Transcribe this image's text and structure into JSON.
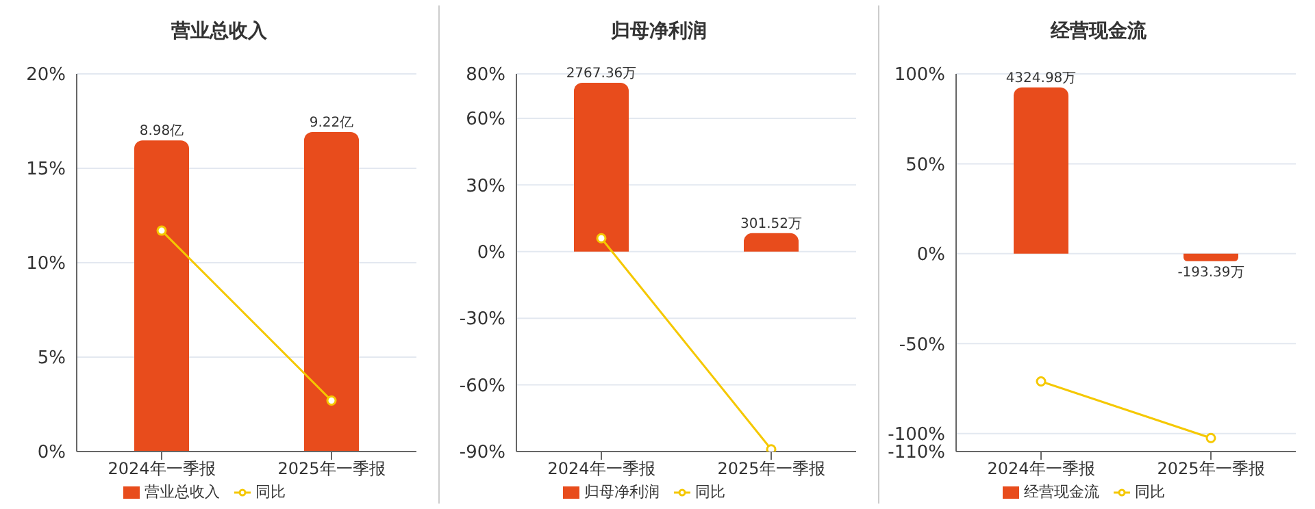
{
  "chart_data": [
    {
      "type": "bar",
      "title": "营业总收入",
      "categories": [
        "2024年一季报",
        "2025年一季报"
      ],
      "series": [
        {
          "name": "营业总收入",
          "color": "#e84c1c",
          "axis": "y2",
          "values": [
            8.98,
            9.22
          ],
          "value_labels": [
            "8.98亿",
            "9.22亿"
          ]
        },
        {
          "name": "同比",
          "type": "line",
          "color": "#f5c800",
          "values": [
            11.7,
            2.7
          ]
        }
      ],
      "ylim": [
        0,
        20
      ],
      "yticks": [
        {
          "value": 0,
          "label": "0%"
        },
        {
          "value": 5,
          "label": "5%"
        },
        {
          "value": 10,
          "label": "10%"
        },
        {
          "value": 15,
          "label": "15%"
        },
        {
          "value": 20,
          "label": "20%"
        }
      ],
      "y2lim": [
        0,
        10.9
      ],
      "grid": "y",
      "legend": "bottom",
      "marker": "circle"
    },
    {
      "type": "bar",
      "title": "归母净利润",
      "categories": [
        "2024年一季报",
        "2025年一季报"
      ],
      "series": [
        {
          "name": "归母净利润",
          "color": "#e84c1c",
          "axis": "y2",
          "values": [
            2767.36,
            301.52
          ],
          "value_labels": [
            "2767.36万",
            "301.52万"
          ]
        },
        {
          "name": "同比",
          "type": "line",
          "color": "#f5c800",
          "values": [
            6,
            -89
          ]
        }
      ],
      "ylim": [
        -90,
        80
      ],
      "yticks": [
        {
          "value": -90,
          "label": "-90%"
        },
        {
          "value": -60,
          "label": "-60%"
        },
        {
          "value": -30,
          "label": "-30%"
        },
        {
          "value": 0,
          "label": "0%"
        },
        {
          "value": 30,
          "label": "30%"
        },
        {
          "value": 60,
          "label": "60%"
        },
        {
          "value": 80,
          "label": "80%"
        }
      ],
      "y2lim": [
        -3276,
        2912
      ],
      "grid": "y",
      "legend": "bottom",
      "marker": "circle"
    },
    {
      "type": "bar",
      "title": "经营现金流",
      "categories": [
        "2024年一季报",
        "2025年一季报"
      ],
      "series": [
        {
          "name": "经营现金流",
          "color": "#e84c1c",
          "axis": "y2",
          "values": [
            4324.98,
            -193.39
          ],
          "value_labels": [
            "4324.98万",
            "-193.39万"
          ]
        },
        {
          "name": "同比",
          "type": "line",
          "color": "#f5c800",
          "values": [
            -71,
            -102.5
          ]
        }
      ],
      "ylim": [
        -110,
        100
      ],
      "yticks": [
        {
          "value": -110,
          "label": "-110%"
        },
        {
          "value": -100,
          "label": "-100%"
        },
        {
          "value": -50,
          "label": "-50%"
        },
        {
          "value": 0,
          "label": "0%"
        },
        {
          "value": 50,
          "label": "50%"
        },
        {
          "value": 100,
          "label": "100%"
        }
      ],
      "y2lim": [
        -5144,
        4676
      ],
      "grid": "y",
      "legend": "bottom",
      "marker": "circle"
    }
  ]
}
